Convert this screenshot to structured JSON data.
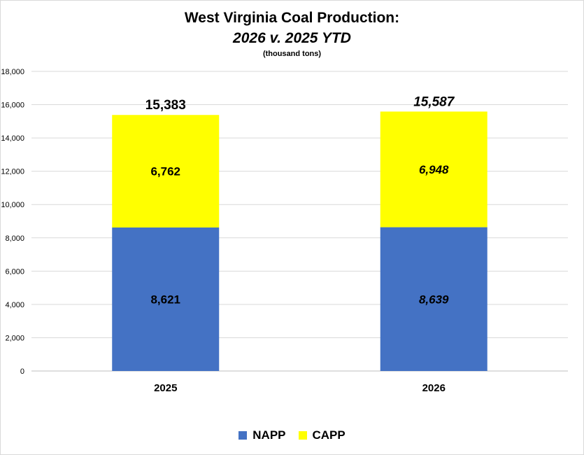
{
  "chart_data": {
    "type": "bar",
    "stacked": true,
    "title": "West Virginia Coal Production:",
    "subtitle": "2026 v. 2025 YTD",
    "units": "(thousand tons)",
    "categories": [
      "2025",
      "2026"
    ],
    "series": [
      {
        "name": "NAPP",
        "values": [
          8621,
          8639
        ],
        "labels": [
          "8,621",
          "8,639"
        ],
        "color": "#4472C4"
      },
      {
        "name": "CAPP",
        "values": [
          6762,
          6948
        ],
        "labels": [
          "6,762",
          "6,948"
        ],
        "color": "#FFFF00"
      }
    ],
    "totals": [
      15383,
      15587
    ],
    "total_labels": [
      "15,383",
      "15,587"
    ],
    "italic_categories": [
      "2026"
    ],
    "ylim": [
      0,
      18000
    ],
    "yticks": [
      0,
      2000,
      4000,
      6000,
      8000,
      10000,
      12000,
      14000,
      16000,
      18000
    ],
    "ytick_labels": [
      "0",
      "2,000",
      "4,000",
      "6,000",
      "8,000",
      "10,000",
      "12,000",
      "14,000",
      "16,000",
      "18,000"
    ],
    "grid": true,
    "legend_position": "bottom"
  }
}
